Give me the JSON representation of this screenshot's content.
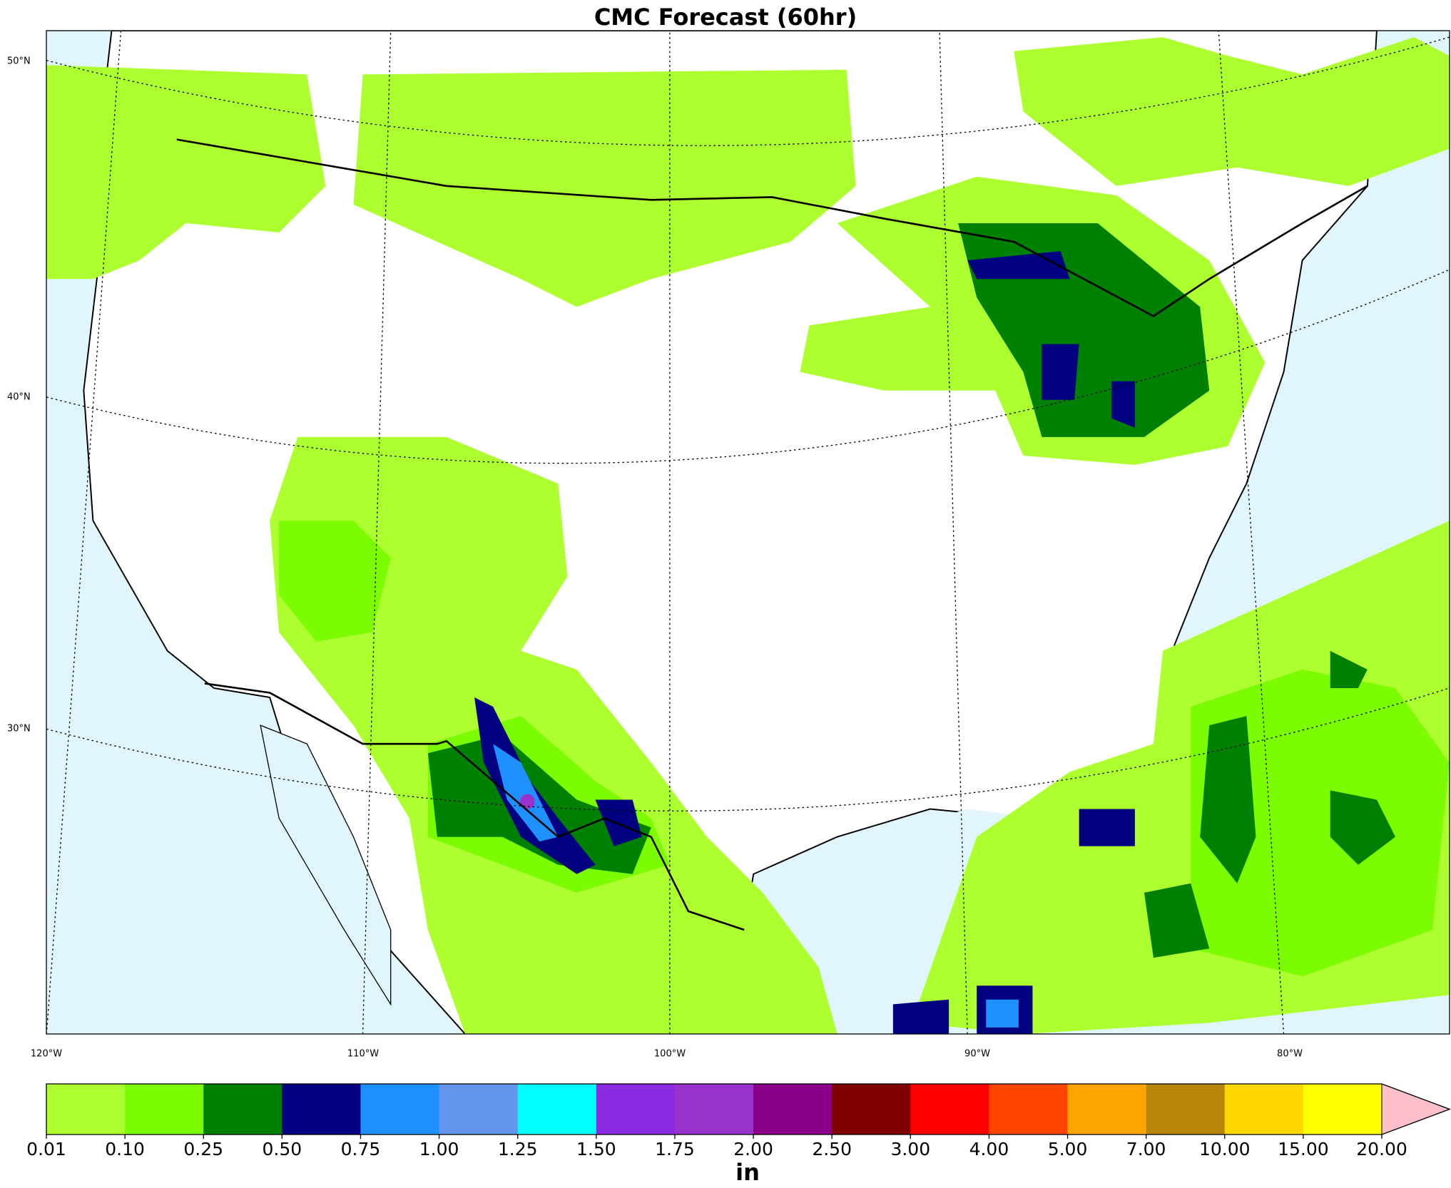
{
  "title": "CMC Forecast (60hr)",
  "lat_labels": [
    "50°N",
    "40°N",
    "30°N"
  ],
  "lon_labels": [
    "120°W",
    "110°W",
    "100°W",
    "90°W",
    "80°W"
  ],
  "colorbar": {
    "labels": [
      "0.01",
      "0.10",
      "0.25",
      "0.50",
      "0.75",
      "1.00",
      "1.25",
      "1.50",
      "1.75",
      "2.00",
      "2.50",
      "3.00",
      "4.00",
      "5.00",
      "7.00",
      "10.00",
      "15.00",
      "20.00"
    ],
    "colors": [
      "#adff2f",
      "#7cfc00",
      "#008000",
      "#000080",
      "#1e90ff",
      "#6495ed",
      "#00ffff",
      "#8a2be2",
      "#9932cc",
      "#8b008b",
      "#800000",
      "#ff0000",
      "#ff4500",
      "#ffa500",
      "#b8860b",
      "#ffd700",
      "#ffff00"
    ],
    "extend_color": "#ffc0cb",
    "units": "in"
  }
}
